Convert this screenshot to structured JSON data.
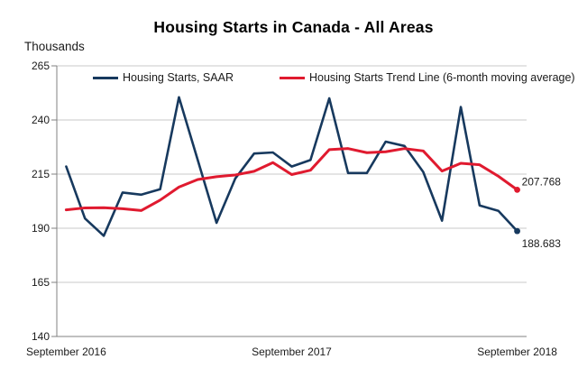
{
  "title": "Housing Starts in Canada - All Areas",
  "unit_label": "Thousands",
  "chart_data": {
    "type": "line",
    "title": "Housing Starts in Canada - All Areas",
    "ylabel": "Thousands",
    "ylim": [
      140,
      265
    ],
    "yticks": [
      265,
      240,
      215,
      190,
      165,
      140
    ],
    "grid": true,
    "legend_position": "top-inside",
    "x": [
      "Sep 2016",
      "Oct 2016",
      "Nov 2016",
      "Dec 2016",
      "Jan 2017",
      "Feb 2017",
      "Mar 2017",
      "Apr 2017",
      "May 2017",
      "Jun 2017",
      "Jul 2017",
      "Aug 2017",
      "Sep 2017",
      "Oct 2017",
      "Nov 2017",
      "Dec 2017",
      "Jan 2018",
      "Feb 2018",
      "Mar 2018",
      "Apr 2018",
      "May 2018",
      "Jun 2018",
      "Jul 2018",
      "Aug 2018",
      "Sep 2018"
    ],
    "xticks": [
      "September 2016",
      "September 2017",
      "September 2018"
    ],
    "xtick_positions": [
      0,
      12,
      24
    ],
    "series": [
      {
        "name": "Housing Starts, SAAR",
        "color": "#17395E",
        "end_label": "188.683",
        "values": [
          218.5,
          194.5,
          186.5,
          206.5,
          205.5,
          208.0,
          250.5,
          221.5,
          192.5,
          213.0,
          224.5,
          225.0,
          218.5,
          221.5,
          250.0,
          215.5,
          215.5,
          230.0,
          228.0,
          216.0,
          193.5,
          246.0,
          200.5,
          198.0,
          188.683
        ]
      },
      {
        "name": "Housing Starts Trend Line (6-month moving average)",
        "color": "#E01A2F",
        "end_label": "207.768",
        "values": [
          198.5,
          199.4,
          199.5,
          199.0,
          198.2,
          203.0,
          209.0,
          212.5,
          213.8,
          214.6,
          216.3,
          220.3,
          214.8,
          216.8,
          226.3,
          226.8,
          224.9,
          225.3,
          226.8,
          225.7,
          216.4,
          220.0,
          219.3,
          214.0,
          207.768
        ]
      }
    ]
  }
}
